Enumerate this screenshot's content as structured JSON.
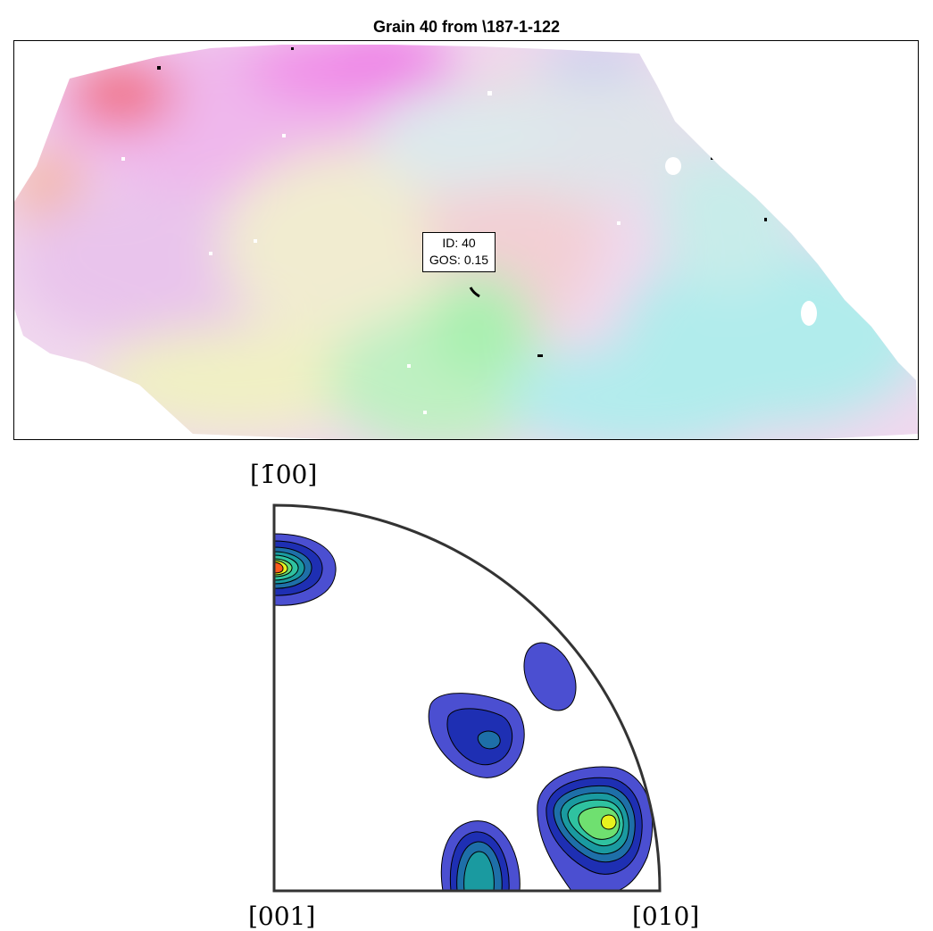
{
  "title": "Grain 40 from \\187-1-122",
  "annotation": {
    "id_text": "ID: 40",
    "gos_text": "GOS: 0.15"
  },
  "pole_figure": {
    "label_top": "[1̄00]",
    "label_bottom_left": "[001]",
    "label_bottom_right": "[010]"
  },
  "colors": {
    "contour_levels": [
      "#4b4fd1",
      "#1e2fb3",
      "#1e6fa8",
      "#1a9aa0",
      "#2fc2a0",
      "#6fe070",
      "#e8f21e",
      "#ff5a1e"
    ],
    "frame": "#333333"
  }
}
